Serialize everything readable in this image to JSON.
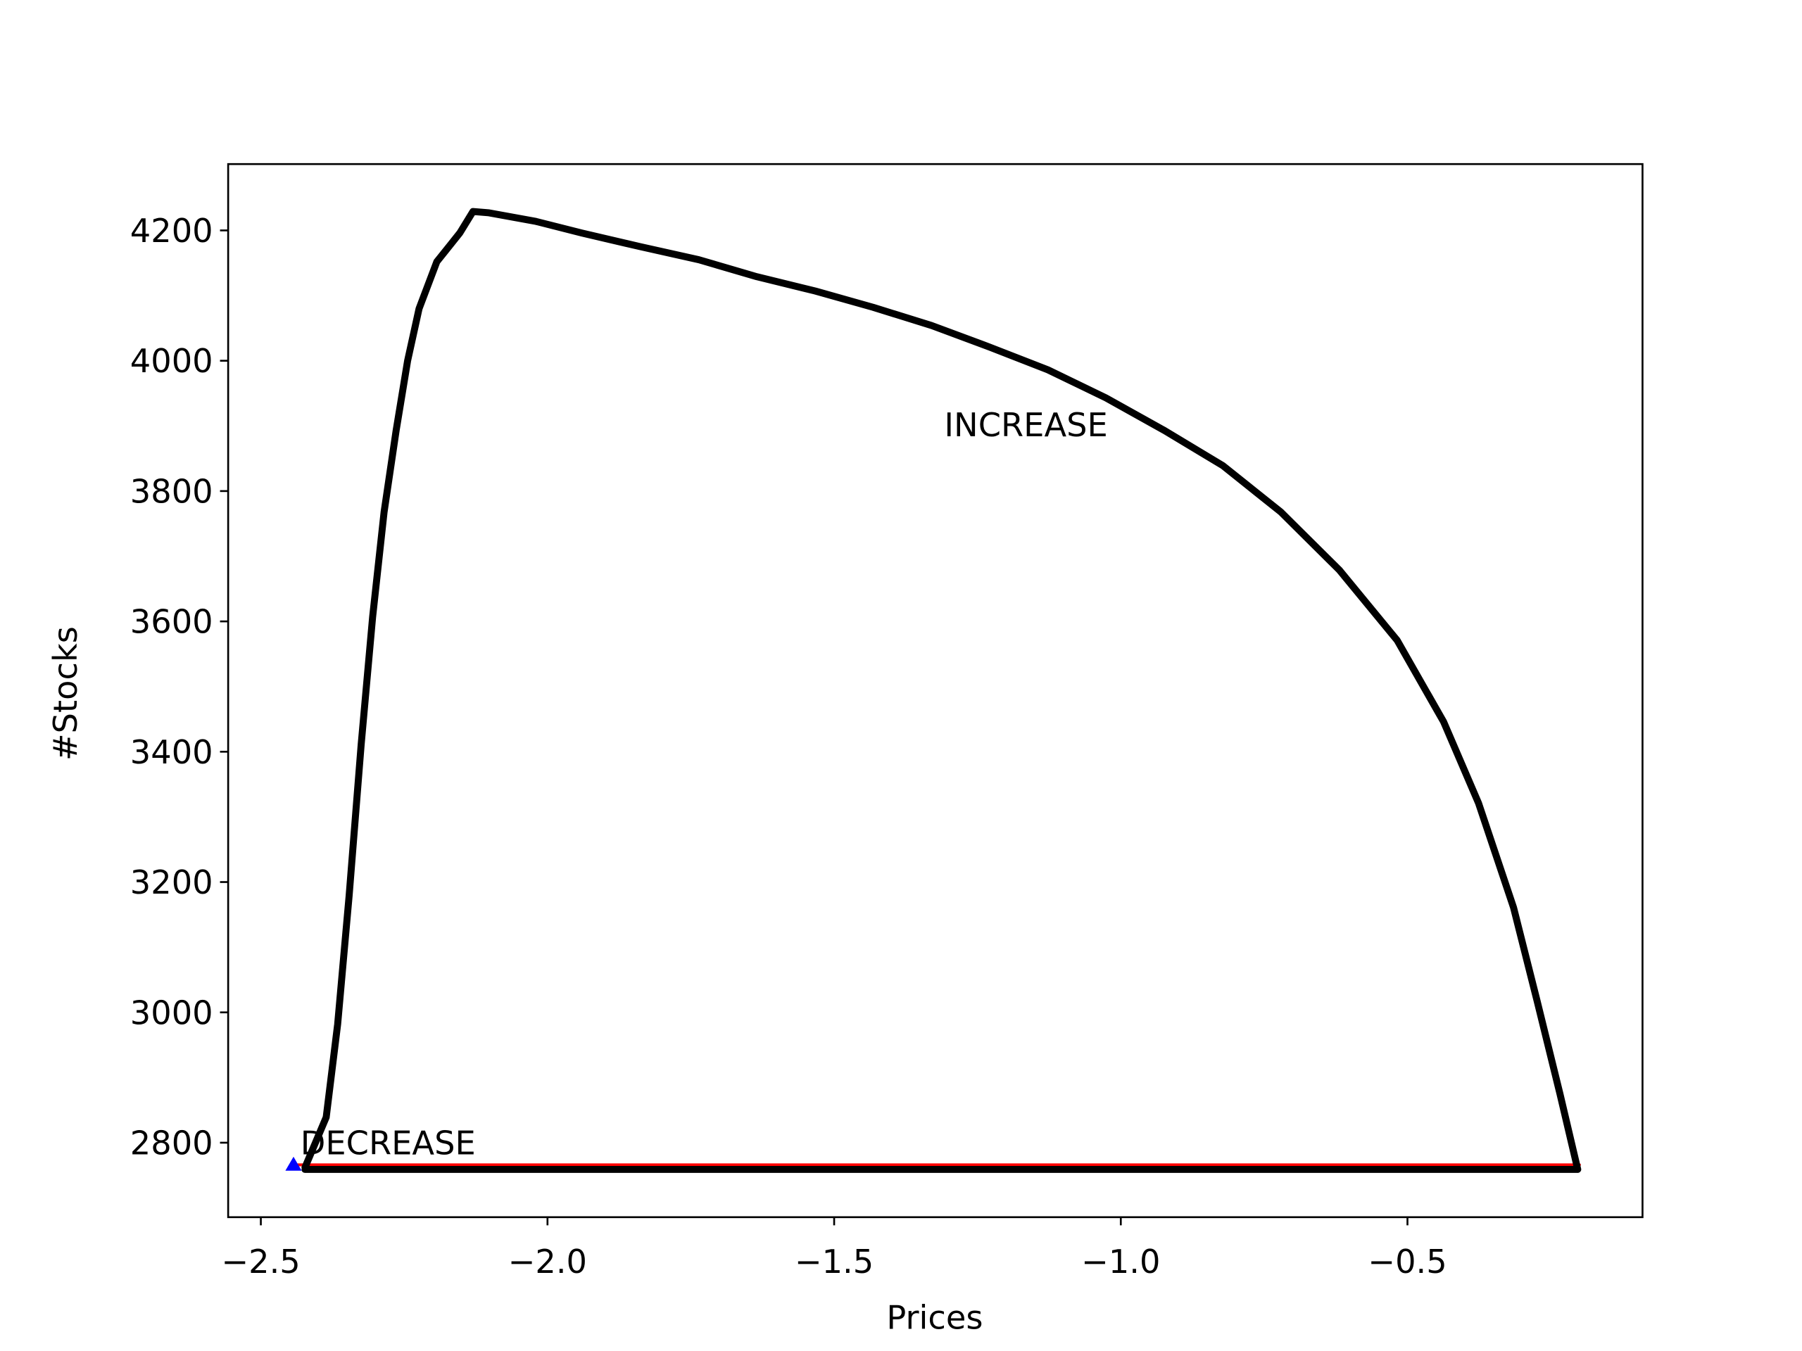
{
  "chart_data": {
    "type": "line",
    "x_label": "Prices",
    "y_label": "#Stocks",
    "xlim": [
      -2.557,
      -0.09
    ],
    "ylim": [
      2685.7,
      4301.8
    ],
    "xticks": [
      {
        "value": -2.5,
        "label": "−2.5"
      },
      {
        "value": -2.0,
        "label": "−2.0"
      },
      {
        "value": -1.5,
        "label": "−1.5"
      },
      {
        "value": -1.0,
        "label": "−1.0"
      },
      {
        "value": -0.5,
        "label": "−0.5"
      }
    ],
    "yticks": [
      2800,
      3000,
      3200,
      3400,
      3600,
      3800,
      4000,
      4200
    ],
    "grid": false,
    "series": [
      {
        "color": "#ff0000",
        "x": [
          -2.44,
          -0.2
        ],
        "values": [
          2766,
          2766
        ]
      },
      {
        "color": "#000000",
        "x": [
          -2.423,
          -2.386,
          -2.366,
          -2.346,
          -2.325,
          -2.305,
          -2.285,
          -2.264,
          -2.244,
          -2.224,
          -2.193,
          -2.153,
          -2.13,
          -2.102,
          -2.021,
          -1.94,
          -1.838,
          -1.736,
          -1.635,
          -1.533,
          -1.432,
          -1.33,
          -1.229,
          -1.127,
          -1.026,
          -0.924,
          -0.822,
          -0.721,
          -0.619,
          -0.518,
          -0.437,
          -0.376,
          -0.315,
          -0.274,
          -0.234,
          -0.203,
          -2.423
        ],
        "values": [
          2762,
          2839,
          2982,
          3179,
          3411,
          3607,
          3768,
          3893,
          4000,
          4080,
          4152,
          4196,
          4229,
          4227,
          4214,
          4196,
          4175,
          4155,
          4129,
          4107,
          4082,
          4054,
          4021,
          3986,
          3943,
          3893,
          3839,
          3768,
          3679,
          3571,
          3446,
          3321,
          3161,
          3018,
          2875,
          2759,
          2759
        ]
      },
      {
        "color": "#0000ff",
        "marker": "triangle",
        "x": [
          -2.443
        ],
        "values": [
          2766
        ]
      }
    ],
    "annotations": [
      {
        "text": "INCREASE",
        "x": -1.308,
        "y": 3884
      },
      {
        "text": "DECREASE",
        "x": -2.431,
        "y": 2782
      }
    ]
  }
}
